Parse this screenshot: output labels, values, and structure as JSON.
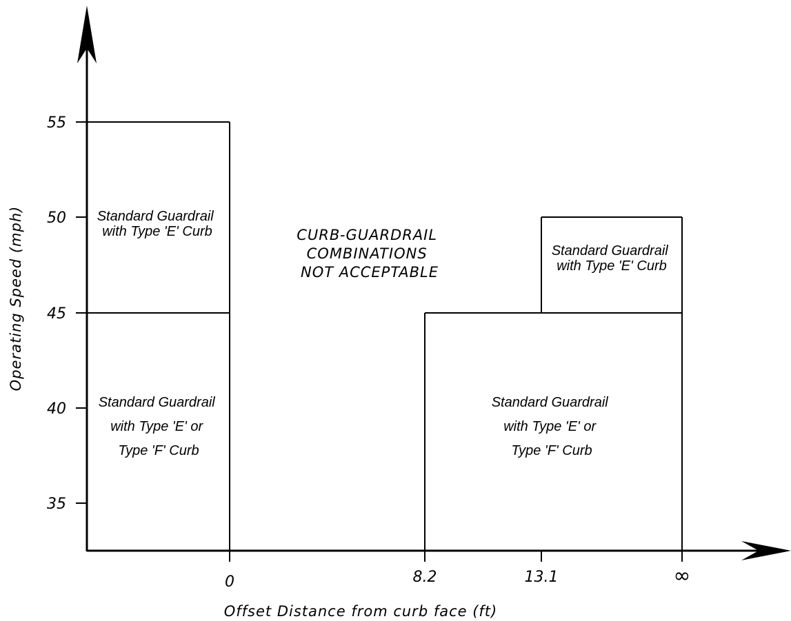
{
  "x_axis": {
    "title": "Offset Distance from curb face (ft)",
    "ticks": [
      "0",
      "8.2",
      "13.1",
      "∞"
    ]
  },
  "y_axis": {
    "title": "Operating Speed (mph)",
    "ticks": [
      "55",
      "50",
      "45",
      "40",
      "35"
    ]
  },
  "regions": {
    "left_upper": [
      "Standard Guardrail",
      "with Type 'E' Curb"
    ],
    "left_lower": [
      "Standard Guardrail",
      "with Type 'E' or",
      "Type 'F' Curb"
    ],
    "center": [
      "CURB-GUARDRAIL",
      "COMBINATIONS",
      "NOT  ACCEPTABLE"
    ],
    "right_upper": [
      "Standard Guardrail",
      "with Type 'E' Curb"
    ],
    "right_lower": [
      "Standard Guardrail",
      "with Type 'E' or",
      "Type 'F' Curb"
    ]
  }
}
